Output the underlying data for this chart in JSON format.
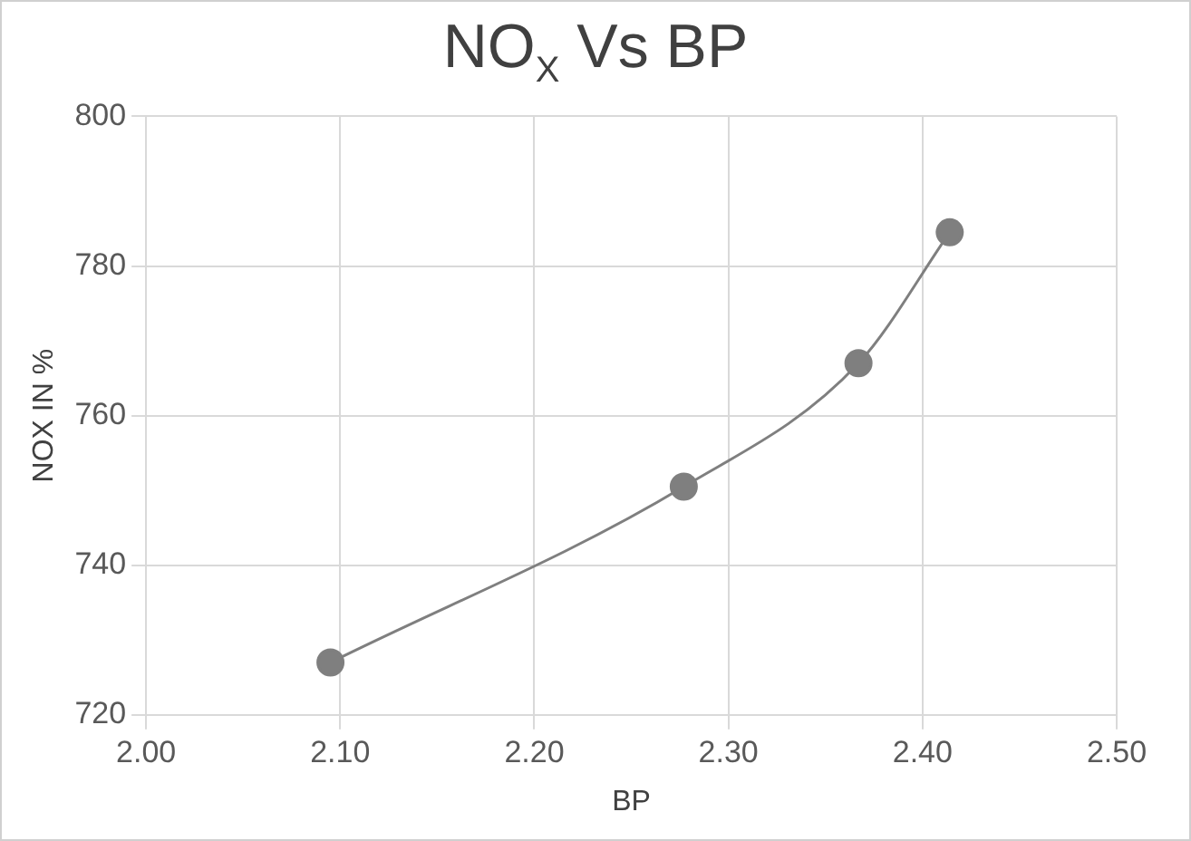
{
  "chart_data": {
    "type": "line",
    "title": "NO$_{X}$ Vs BP",
    "xlabel": "BP",
    "ylabel": "NOX IN %",
    "x": [
      2.095,
      2.277,
      2.367,
      2.414
    ],
    "series": [
      {
        "color": "#7f7f7f",
        "values": [
          727,
          750.5,
          767,
          784.5
        ]
      }
    ],
    "xlim": [
      2.0,
      2.5
    ],
    "xticks": [
      {
        "value": 2.0,
        "label": "2.00"
      },
      {
        "value": 2.1,
        "label": "2.10"
      },
      {
        "value": 2.2,
        "label": "2.20"
      },
      {
        "value": 2.3,
        "label": "2.30"
      },
      {
        "value": 2.4,
        "label": "2.40"
      },
      {
        "value": 2.5,
        "label": "2.50"
      }
    ],
    "ylim": [
      720,
      800
    ],
    "yticks": [
      720,
      740,
      760,
      780,
      800
    ],
    "grid": true,
    "legend": false,
    "marker": "circle",
    "line_style": "solid"
  }
}
